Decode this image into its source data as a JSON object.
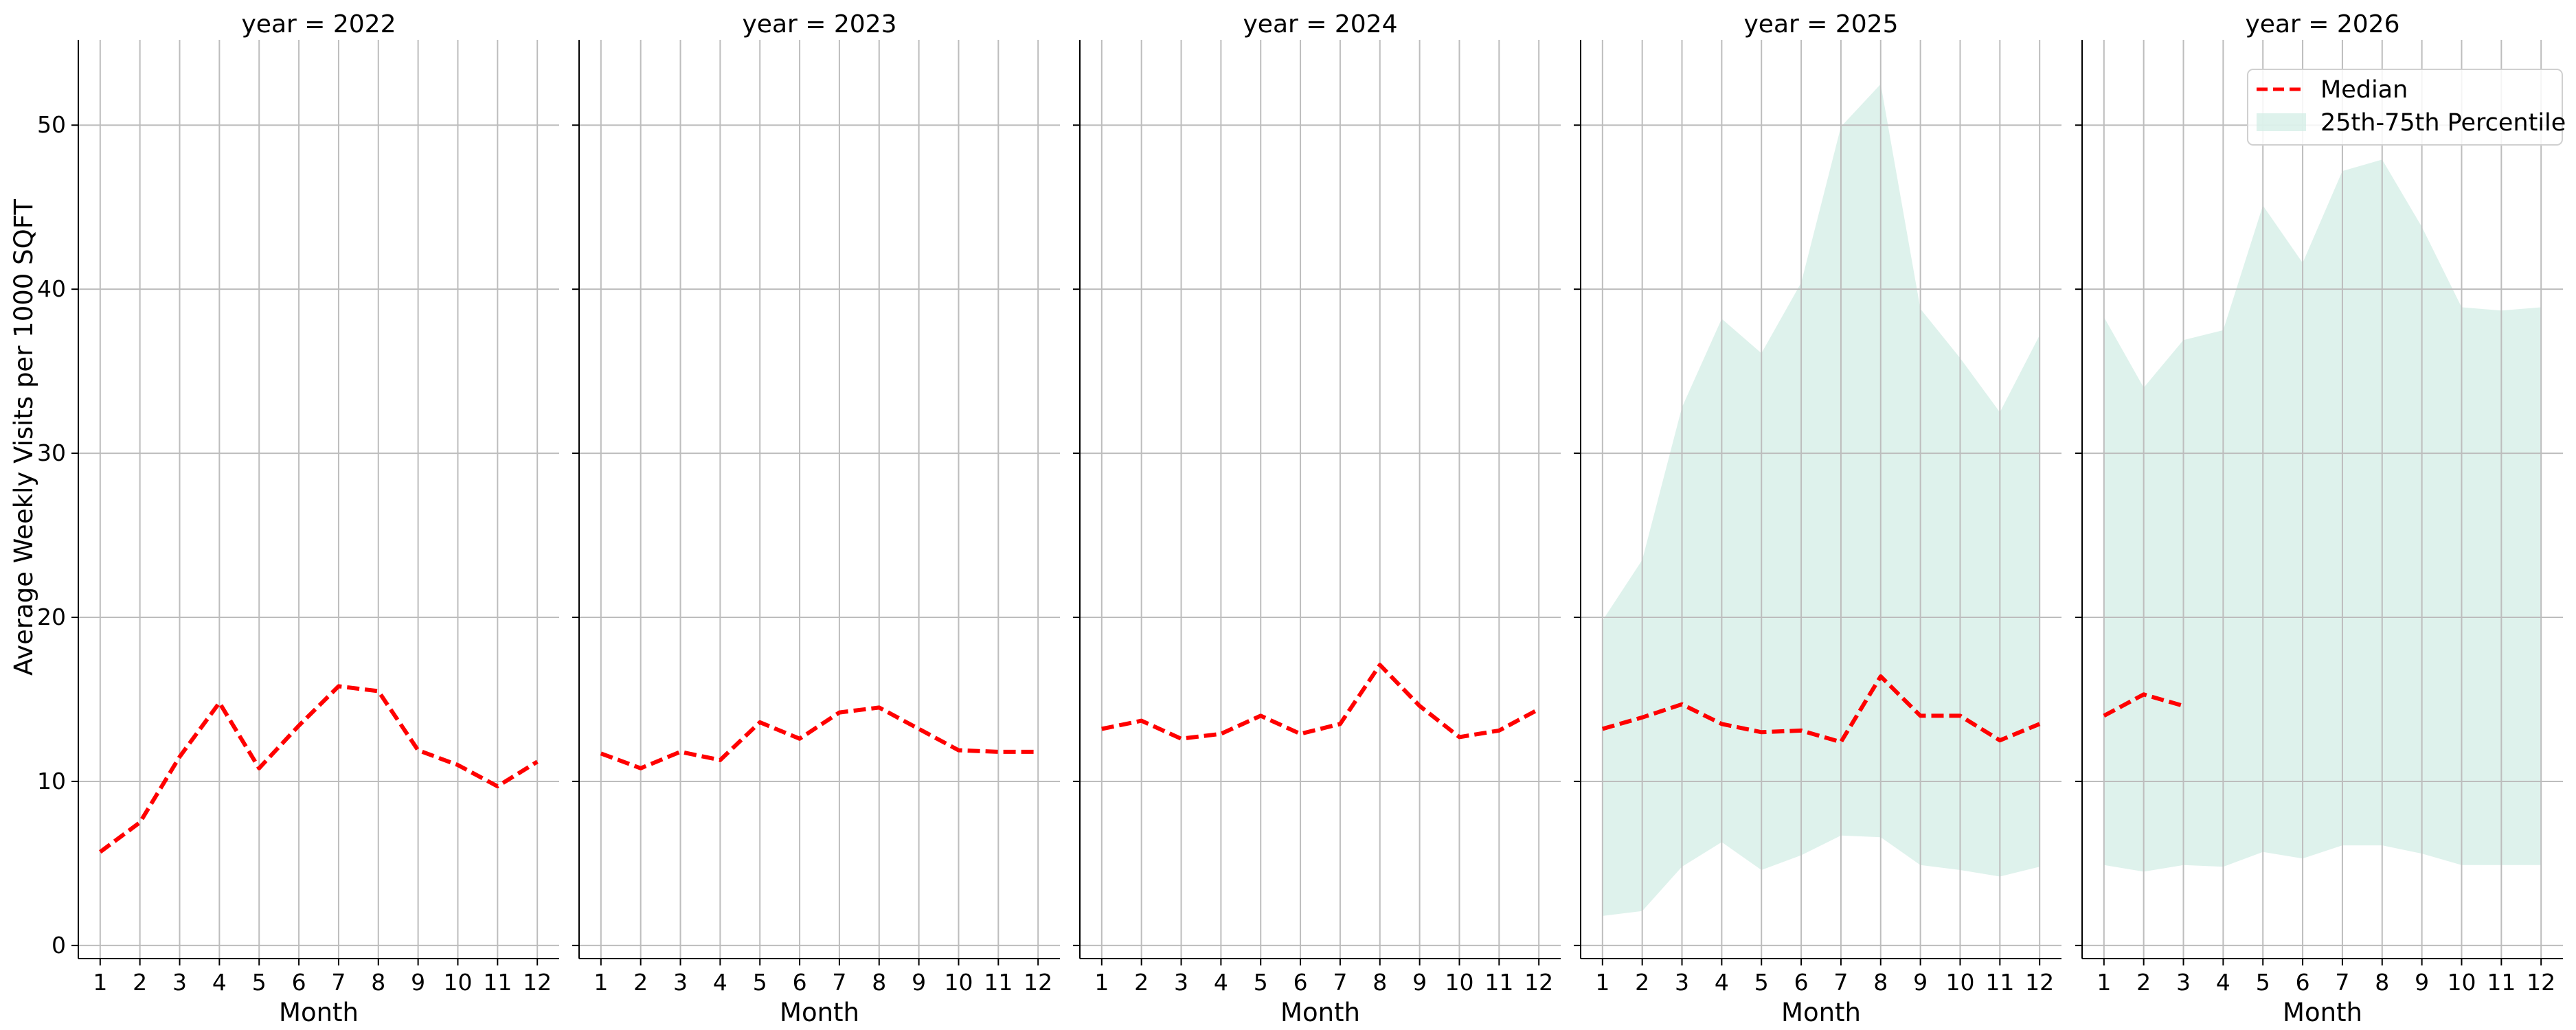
{
  "chart_data": {
    "type": "line",
    "ylabel": "Average Weekly Visits per 1000 SQFT",
    "xlabel": "Month",
    "x": [
      1,
      2,
      3,
      4,
      5,
      6,
      7,
      8,
      9,
      10,
      11,
      12
    ],
    "xticks": [
      "1",
      "2",
      "3",
      "4",
      "5",
      "6",
      "7",
      "8",
      "9",
      "10",
      "11",
      "12"
    ],
    "yticks": [
      "0",
      "10",
      "20",
      "30",
      "40",
      "50"
    ],
    "ylim": [
      -0.8,
      55.2
    ],
    "xlim": [
      0.45,
      12.55
    ],
    "grid": true,
    "legend": {
      "placement": "top-right",
      "median_label": "Median",
      "band_label": "25th-75th Percentile"
    },
    "colors": {
      "median": "#ff0000",
      "band": "#cdebe2",
      "grid": "#bdbdbd",
      "axis": "#000000"
    },
    "facets": [
      {
        "title": "year = 2022",
        "median": [
          5.7,
          7.5,
          11.5,
          14.8,
          10.8,
          13.4,
          15.8,
          15.5,
          11.9,
          11.0,
          9.7,
          11.2
        ],
        "p25": [],
        "p75": []
      },
      {
        "title": "year = 2023",
        "median": [
          11.7,
          10.8,
          11.8,
          11.3,
          13.6,
          12.6,
          14.2,
          14.5,
          13.2,
          11.9,
          11.8,
          11.8
        ],
        "p25": [],
        "p75": []
      },
      {
        "title": "year = 2024",
        "median": [
          13.2,
          13.7,
          12.6,
          12.9,
          14.0,
          12.9,
          13.5,
          17.1,
          14.6,
          12.7,
          13.1,
          14.4
        ],
        "p25": [],
        "p75": []
      },
      {
        "title": "year = 2025",
        "median": [
          13.2,
          13.9,
          14.7,
          13.5,
          13.0,
          13.1,
          12.4,
          16.4,
          14.0,
          14.0,
          12.5,
          13.5
        ],
        "p25": [
          1.8,
          2.1,
          4.8,
          6.3,
          4.6,
          5.5,
          6.7,
          6.6,
          4.9,
          4.6,
          4.2,
          4.8
        ],
        "p75": [
          19.8,
          23.5,
          32.8,
          38.2,
          36.1,
          40.4,
          49.9,
          52.5,
          38.8,
          35.8,
          32.5,
          37.2
        ]
      },
      {
        "title": "year = 2026",
        "median": [
          14.0,
          15.3,
          14.6
        ],
        "p25": [
          4.9,
          4.5,
          4.9,
          4.8,
          5.7,
          5.3,
          6.1,
          6.1,
          5.6,
          4.9,
          4.9,
          4.9
        ],
        "p75": [
          38.3,
          34.0,
          36.9,
          37.5,
          45.1,
          41.6,
          47.2,
          47.9,
          43.8,
          38.9,
          38.7,
          38.9
        ]
      }
    ]
  }
}
